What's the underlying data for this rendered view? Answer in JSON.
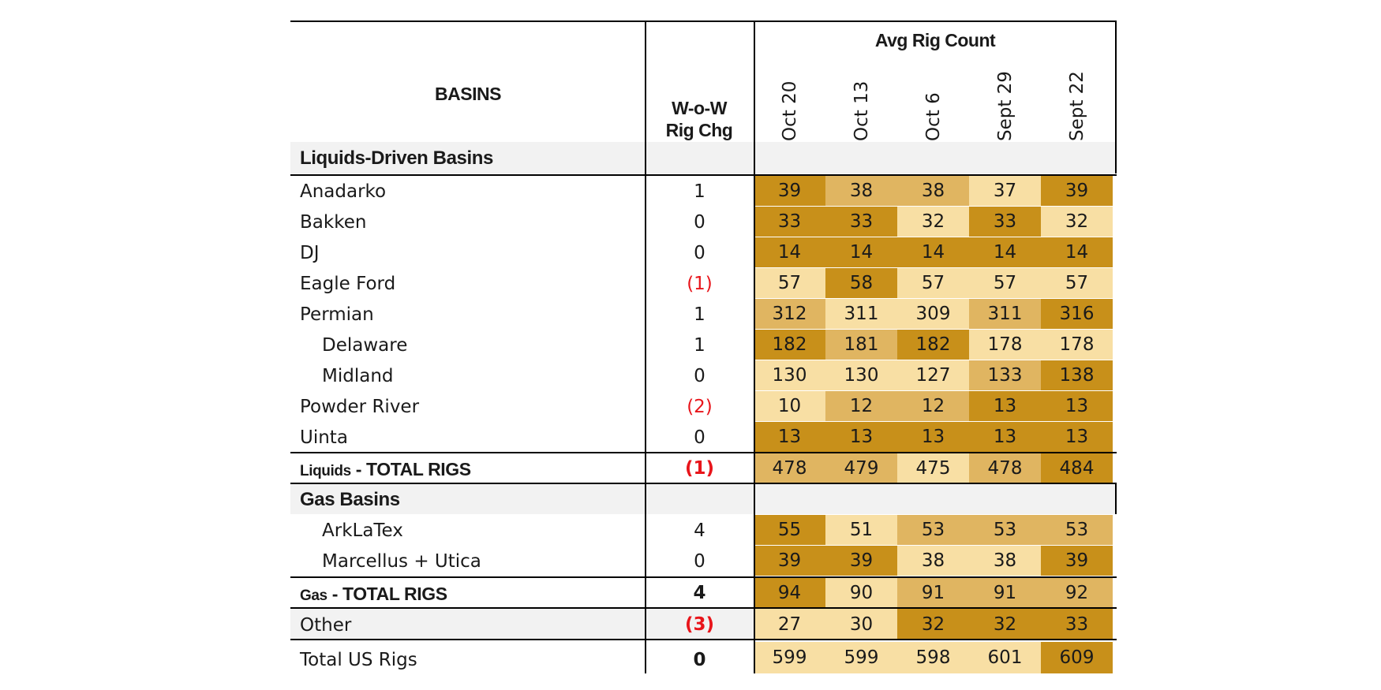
{
  "headers": {
    "basins": "BASINS",
    "chg_line1": "W-o-W",
    "chg_line2": "Rig Chg",
    "group": "Avg Rig Count",
    "weeks": [
      "Oct 20",
      "Oct 13",
      "Oct 6",
      "Sept 29",
      "Sept 22"
    ]
  },
  "colors": {
    "dark": "#c8901a",
    "mid": "#e0b561",
    "light": "#f8dfa4",
    "negative": "#e8151b",
    "band": "#f2f2f2"
  },
  "sections": {
    "liquids": "Liquids-Driven Basins",
    "gas": "Gas Basins"
  },
  "rows": [
    {
      "name": "Anadarko",
      "chg": "1",
      "neg": false,
      "values": [
        39,
        38,
        38,
        37,
        39
      ],
      "shades": [
        "dark",
        "mid",
        "mid",
        "light",
        "dark"
      ]
    },
    {
      "name": "Bakken",
      "chg": "0",
      "neg": false,
      "values": [
        33,
        33,
        32,
        33,
        32
      ],
      "shades": [
        "dark",
        "dark",
        "light",
        "dark",
        "light"
      ]
    },
    {
      "name": "DJ",
      "chg": "0",
      "neg": false,
      "values": [
        14,
        14,
        14,
        14,
        14
      ],
      "shades": [
        "dark",
        "dark",
        "dark",
        "dark",
        "dark"
      ]
    },
    {
      "name": "Eagle Ford",
      "chg": "(1)",
      "neg": true,
      "values": [
        57,
        58,
        57,
        57,
        57
      ],
      "shades": [
        "light",
        "dark",
        "light",
        "light",
        "light"
      ]
    },
    {
      "name": "Permian",
      "chg": "1",
      "neg": false,
      "values": [
        312,
        311,
        309,
        311,
        316
      ],
      "shades": [
        "mid",
        "light",
        "light",
        "mid",
        "dark"
      ]
    },
    {
      "name": "Delaware",
      "chg": "1",
      "neg": false,
      "values": [
        182,
        181,
        182,
        178,
        178
      ],
      "shades": [
        "dark",
        "mid",
        "dark",
        "light",
        "light"
      ]
    },
    {
      "name": "Midland",
      "chg": "0",
      "neg": false,
      "values": [
        130,
        130,
        127,
        133,
        138
      ],
      "shades": [
        "light",
        "light",
        "light",
        "mid",
        "dark"
      ]
    },
    {
      "name": "Powder River",
      "chg": "(2)",
      "neg": true,
      "values": [
        10,
        12,
        12,
        13,
        13
      ],
      "shades": [
        "light",
        "mid",
        "mid",
        "dark",
        "dark"
      ]
    },
    {
      "name": "Uinta",
      "chg": "0",
      "neg": false,
      "values": [
        13,
        13,
        13,
        13,
        13
      ],
      "shades": [
        "dark",
        "dark",
        "dark",
        "dark",
        "dark"
      ]
    }
  ],
  "liquids_total": {
    "prefix": "Liquids",
    "label": " - TOTAL RIGS",
    "chg": "(1)",
    "values": [
      478,
      479,
      475,
      478,
      484
    ],
    "shades": [
      "mid",
      "mid",
      "light",
      "mid",
      "dark"
    ]
  },
  "gas_rows": [
    {
      "name": "ArkLaTex",
      "chg": "4",
      "neg": false,
      "values": [
        55,
        51,
        53,
        53,
        53
      ],
      "shades": [
        "dark",
        "light",
        "mid",
        "mid",
        "mid"
      ]
    },
    {
      "name": "Marcellus + Utica",
      "chg": "0",
      "neg": false,
      "values": [
        39,
        39,
        38,
        38,
        39
      ],
      "shades": [
        "dark",
        "dark",
        "light",
        "light",
        "dark"
      ]
    }
  ],
  "gas_total": {
    "prefix": "Gas",
    "label": " - TOTAL RIGS",
    "chg": "4",
    "values": [
      94,
      90,
      91,
      91,
      92
    ],
    "shades": [
      "dark",
      "light",
      "mid",
      "mid",
      "mid"
    ]
  },
  "other": {
    "name": "Other",
    "chg": "(3)",
    "values": [
      27,
      30,
      32,
      32,
      33
    ],
    "shades": [
      "light",
      "light",
      "dark",
      "dark",
      "dark"
    ]
  },
  "us_total": {
    "name": "Total US Rigs",
    "chg": "0",
    "values": [
      599,
      599,
      598,
      601,
      609
    ],
    "shades": [
      "light",
      "light",
      "light",
      "light",
      "dark"
    ]
  }
}
